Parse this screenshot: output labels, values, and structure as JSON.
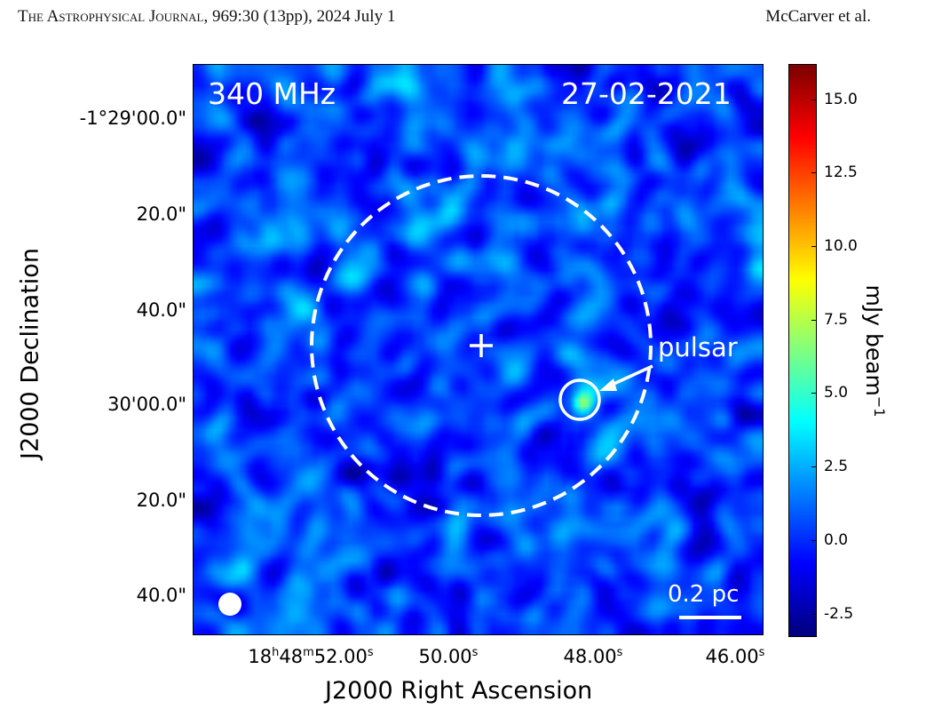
{
  "header": {
    "journal": "The Astrophysical Journal",
    "citation": ", 969:30 (13pp), 2024 July 1",
    "authors": "McCarver et al."
  },
  "figure": {
    "frequency_label": "340 MHz",
    "date_label": "27-02-2021",
    "pulsar_label": "pulsar",
    "scalebar_label": "0.2 pc",
    "xlabel": "J2000 Right Ascension",
    "ylabel": "J2000 Declination",
    "yticks": [
      "-1°29'00.0\"",
      "20.0\"",
      "40.0\"",
      "30'00.0\"",
      "20.0\"",
      "40.0\""
    ],
    "xticks": [
      {
        "h": "18",
        "m": "48",
        "s": "52.00"
      },
      {
        "s": "50.00"
      },
      {
        "s": "48.00"
      },
      {
        "s": "46.00"
      }
    ],
    "colorbar": {
      "label": "mJy beam",
      "exponent": "−1",
      "colormap": "jet",
      "range": [
        -3.3,
        16.2
      ],
      "ticks": [
        "15.0",
        "12.5",
        "10.0",
        "7.5",
        "5.0",
        "2.5",
        "0.0",
        "-2.5"
      ],
      "tick_values": [
        15,
        12.5,
        10,
        7.5,
        5,
        2.5,
        0,
        -2.5
      ]
    },
    "pulsar_peak_mJy": 6
  }
}
